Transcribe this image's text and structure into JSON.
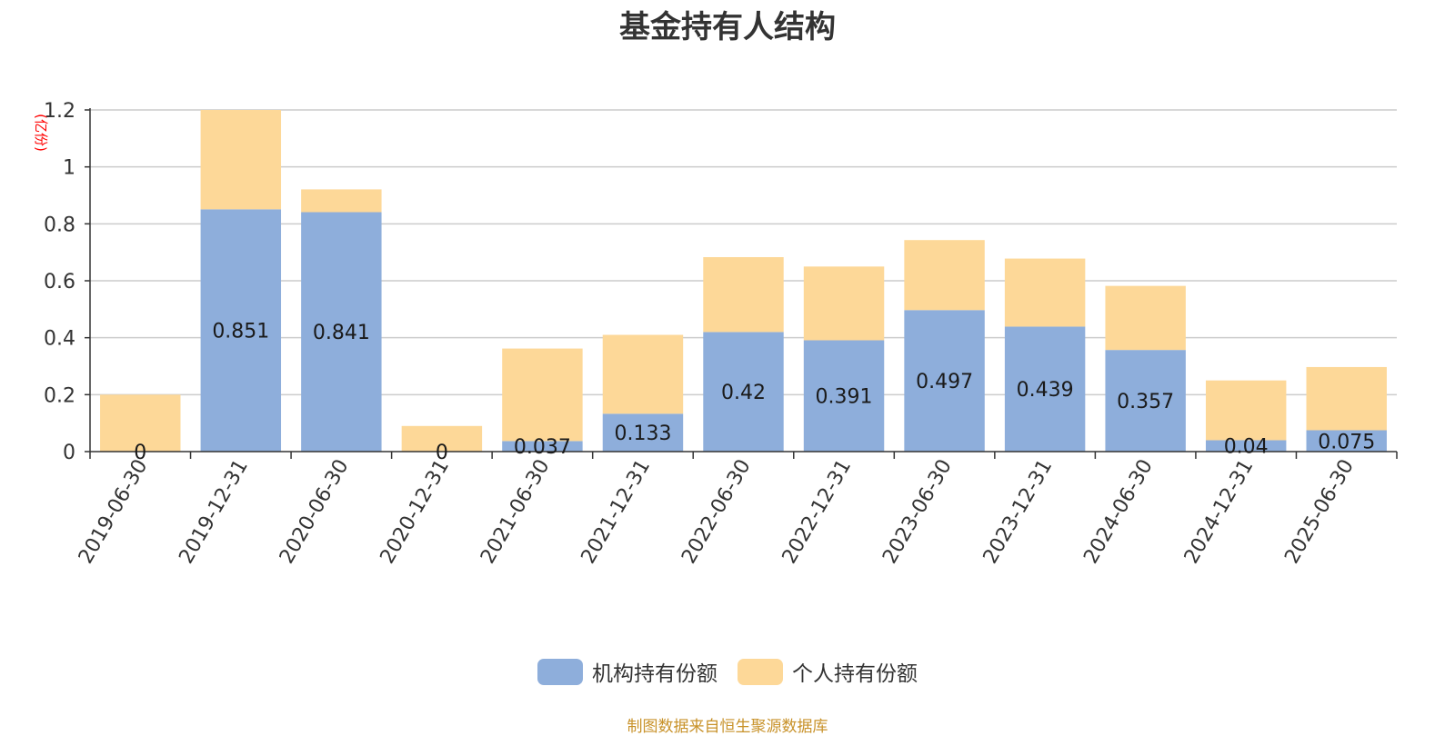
{
  "chart_data": {
    "type": "bar",
    "stacked": true,
    "title": "基金持有人结构",
    "unit_label": "(亿份)",
    "categories": [
      "2019-06-30",
      "2019-12-31",
      "2020-06-30",
      "2020-12-31",
      "2021-06-30",
      "2021-12-31",
      "2022-06-30",
      "2022-12-31",
      "2023-06-30",
      "2023-12-31",
      "2024-06-30",
      "2024-12-31",
      "2025-06-30"
    ],
    "series": [
      {
        "name": "机构持有份额",
        "color": "#8eaedb",
        "values": [
          0,
          0.851,
          0.841,
          0,
          0.037,
          0.133,
          0.42,
          0.391,
          0.497,
          0.439,
          0.357,
          0.04,
          0.075
        ],
        "labels": [
          "0",
          "0.851",
          "0.841",
          "0",
          "0.037",
          "0.133",
          "0.42",
          "0.391",
          "0.497",
          "0.439",
          "0.357",
          "0.04",
          "0.075"
        ]
      },
      {
        "name": "个人持有份额",
        "color": "#fdd898",
        "values": [
          0.2,
          0.349,
          0.08,
          0.09,
          0.325,
          0.277,
          0.263,
          0.259,
          0.246,
          0.239,
          0.225,
          0.21,
          0.222
        ]
      }
    ],
    "yticks": [
      "0",
      "0.2",
      "0.4",
      "0.6",
      "0.8",
      "1",
      "1.2"
    ],
    "ylim": [
      0,
      1.2
    ],
    "grid": true,
    "legend_position": "bottom"
  },
  "source_note": "制图数据来自恒生聚源数据库",
  "colors": {
    "title": "#333333",
    "axis": "#333333",
    "grid": "#cccccc",
    "unit_label": "#ff0000",
    "source_note": "#c8922a"
  }
}
